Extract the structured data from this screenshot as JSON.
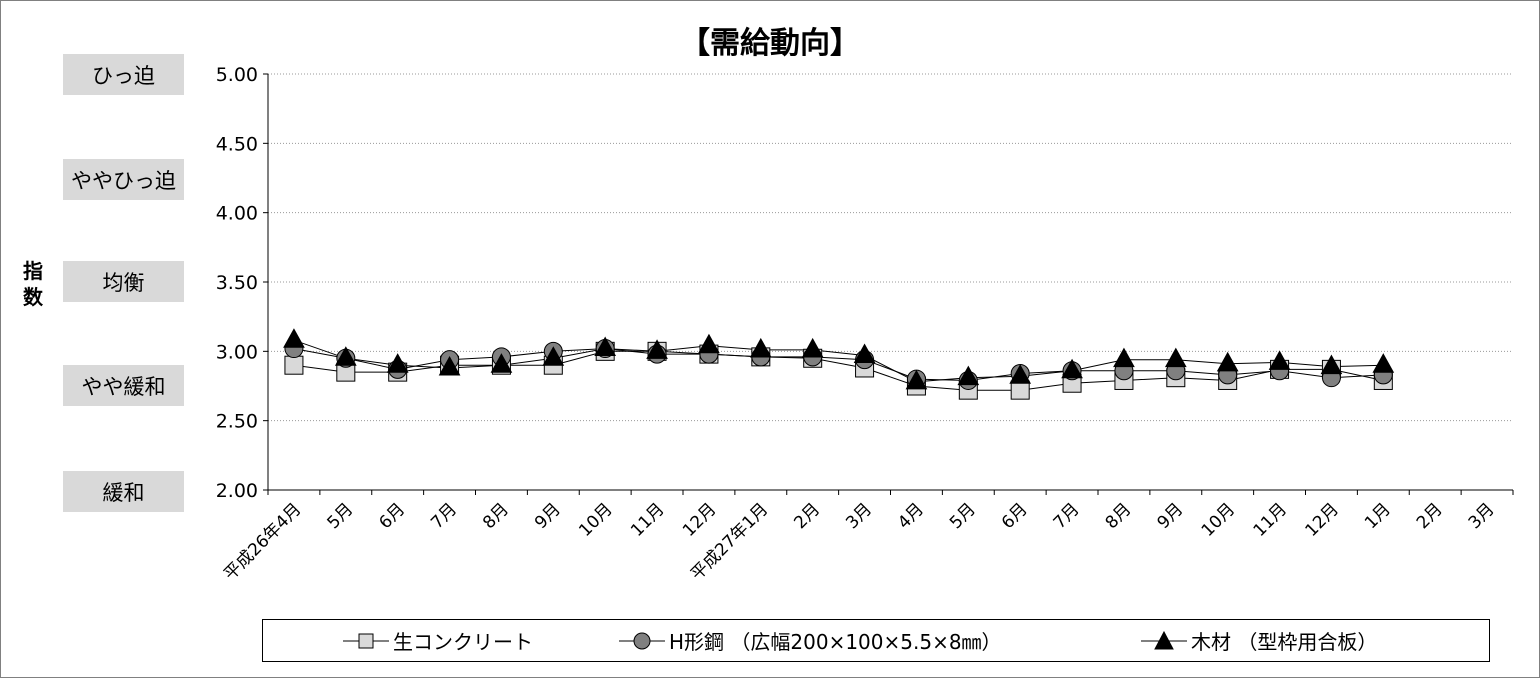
{
  "chart_data": {
    "type": "line",
    "title": "【需給動向】",
    "ylabel": "指数",
    "ylim": [
      2.0,
      5.0
    ],
    "yticks": [
      "5.00",
      "4.50",
      "4.00",
      "3.50",
      "3.00",
      "2.50",
      "2.00"
    ],
    "grid": true,
    "legend_position": "bottom",
    "levels": [
      {
        "label": "ひっ迫",
        "value": 5.0
      },
      {
        "label": "ややひっ迫",
        "value": 4.25
      },
      {
        "label": "均衡",
        "value": 3.5
      },
      {
        "label": "やや緩和",
        "value": 2.75
      },
      {
        "label": "緩和",
        "value": 2.0
      }
    ],
    "categories": [
      "平成26年4月",
      "5月",
      "6月",
      "7月",
      "8月",
      "9月",
      "10月",
      "11月",
      "12月",
      "平成27年1月",
      "2月",
      "3月",
      "4月",
      "5月",
      "6月",
      "7月",
      "8月",
      "9月",
      "10月",
      "11月",
      "12月",
      "1月",
      "2月",
      "3月"
    ],
    "series": [
      {
        "name": "生コンクリート",
        "marker": "square",
        "color": "#d9d9d9",
        "values": [
          2.9,
          2.85,
          2.85,
          2.9,
          2.9,
          2.9,
          3.0,
          3.0,
          2.98,
          2.96,
          2.95,
          2.88,
          2.75,
          2.72,
          2.72,
          2.77,
          2.79,
          2.81,
          2.79,
          2.87,
          2.87,
          2.79,
          null,
          null
        ]
      },
      {
        "name": "H形鋼 （広幅200×100×5.5×8㎜）",
        "marker": "circle",
        "color": "#808080",
        "values": [
          3.02,
          2.95,
          2.87,
          2.94,
          2.96,
          3.0,
          3.02,
          2.98,
          2.98,
          2.96,
          2.96,
          2.94,
          2.8,
          2.79,
          2.84,
          2.86,
          2.86,
          2.86,
          2.83,
          2.86,
          2.81,
          2.83,
          null,
          null
        ]
      },
      {
        "name": "木材 （型枠用合板）",
        "marker": "triangle",
        "color": "#000000",
        "values": [
          3.08,
          2.95,
          2.9,
          2.88,
          2.9,
          2.95,
          3.02,
          3.0,
          3.04,
          3.01,
          3.01,
          2.97,
          2.78,
          2.81,
          2.82,
          2.86,
          2.94,
          2.94,
          2.91,
          2.92,
          2.89,
          2.9,
          null,
          null
        ]
      }
    ]
  }
}
